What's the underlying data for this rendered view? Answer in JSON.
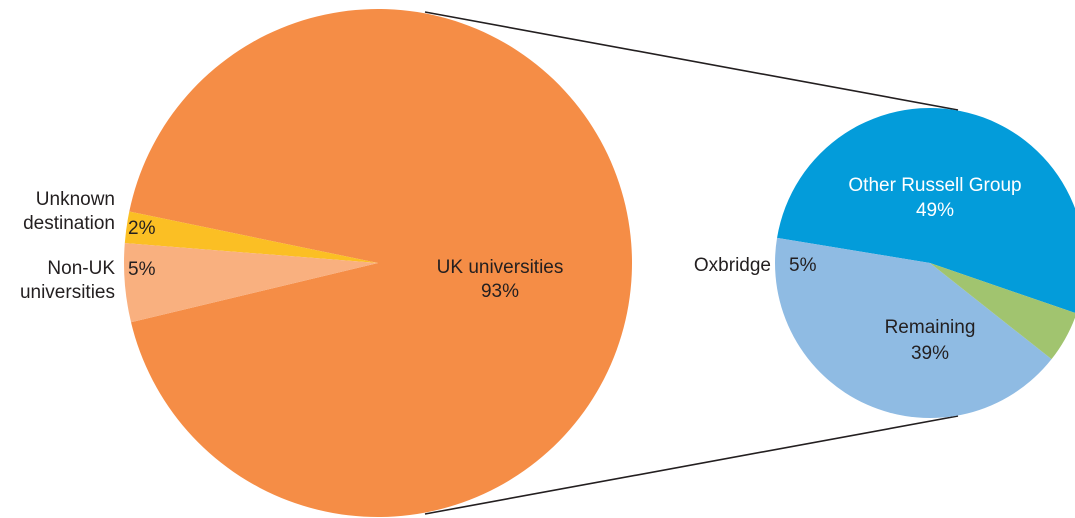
{
  "chart_data": [
    {
      "type": "pie",
      "slices": [
        {
          "name": "UK universities",
          "value": 93,
          "label": "93%",
          "color": "#f58d46"
        },
        {
          "name": "Unknown destination",
          "value": 2,
          "label": "2%",
          "color": "#fbbf24"
        },
        {
          "name": "Non-UK universities",
          "value": 5,
          "label": "5%",
          "color": "#f9b07f"
        }
      ],
      "outside_labels": {
        "unknown_line1": "Unknown",
        "unknown_line2": "destination",
        "nonuk_line1": "Non-UK",
        "nonuk_line2": "universities"
      }
    },
    {
      "type": "pie",
      "breakdown_of": "UK universities",
      "slices": [
        {
          "name": "Other Russell Group",
          "value": 49,
          "label": "49%",
          "color": "#039cda"
        },
        {
          "name": "Remaining",
          "value": 39,
          "label": "39%",
          "color": "#8fbbe3"
        },
        {
          "name": "Oxbridge",
          "value": 5,
          "label": "5%",
          "color": "#a1c46f"
        }
      ]
    }
  ]
}
